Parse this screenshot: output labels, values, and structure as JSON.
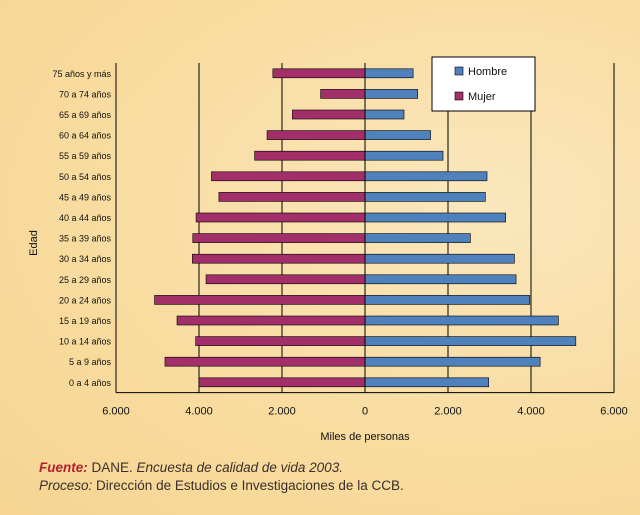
{
  "chart_data": {
    "type": "bar",
    "orientation": "horizontal",
    "ylabel": "Edad",
    "xlabel": "Miles de personas",
    "xlim": [
      -6000,
      6000
    ],
    "xticks": [
      -6000,
      -4000,
      -2000,
      0,
      2000,
      4000,
      6000
    ],
    "xtick_labels": [
      "6.000",
      "4.000",
      "2.000",
      "0",
      "2.000",
      "4.000",
      "6.000"
    ],
    "categories": [
      "0 a 4 años",
      "5 a 9 años",
      "10 a 14 años",
      "15 a 19 años",
      "20 a 24 años",
      "25 a 29 años",
      "30 a 34 años",
      "35 a 39 años",
      "40 a 44 años",
      "45 a 49 años",
      "50 a 54 años",
      "55 a 59 años",
      "60 a 64 años",
      "65 a 69 años",
      "70 a 74 años",
      "75 años y más"
    ],
    "series": [
      {
        "name": "Hombre",
        "color": "#4f81bd",
        "values": [
          2980,
          4220,
          5080,
          4660,
          3970,
          3640,
          3600,
          2540,
          3390,
          2900,
          2940,
          1880,
          1580,
          940,
          1270,
          1160
        ]
      },
      {
        "name": "Mujer",
        "color": "#a32f6a",
        "values": [
          -4000,
          -4820,
          -4080,
          -4530,
          -5070,
          -3830,
          -4160,
          -4150,
          -4070,
          -3520,
          -3700,
          -2660,
          -2360,
          -1750,
          -1070,
          -2220
        ]
      }
    ],
    "grid": "vertical lines at major x ticks",
    "legend": "top-right"
  },
  "source": {
    "fuente_label": "Fuente:",
    "fuente_org": "DANE.",
    "fuente_title": "Encuesta de calidad de vida 2003.",
    "proceso_label": "Proceso:",
    "proceso_text": "Dirección de Estudios e Investigaciones de la CCB."
  }
}
